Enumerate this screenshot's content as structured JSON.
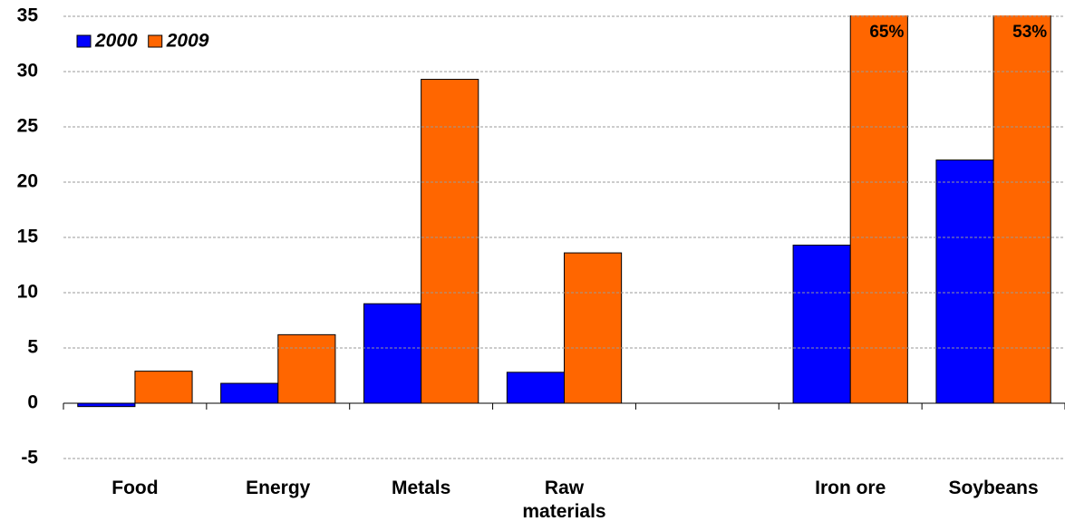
{
  "chart_data": {
    "type": "bar",
    "categories": [
      "Food",
      "Energy",
      "Metals",
      "Raw materials",
      null,
      "Iron ore",
      "Soybeans"
    ],
    "series": [
      {
        "name": "2000",
        "color": "#0000ff",
        "values": [
          -0.3,
          1.8,
          9,
          2.8,
          null,
          14.3,
          22
        ]
      },
      {
        "name": "2009",
        "color": "#ff6600",
        "values": [
          2.9,
          6.2,
          29.3,
          13.6,
          null,
          65,
          53
        ],
        "value_labels": [
          null,
          null,
          null,
          null,
          null,
          "65%",
          "53%"
        ]
      }
    ],
    "ylim": [
      -5,
      35
    ],
    "yticks": [
      -5,
      0,
      5,
      10,
      15,
      20,
      25,
      30,
      35
    ],
    "grid": true,
    "legend": "top-left"
  }
}
